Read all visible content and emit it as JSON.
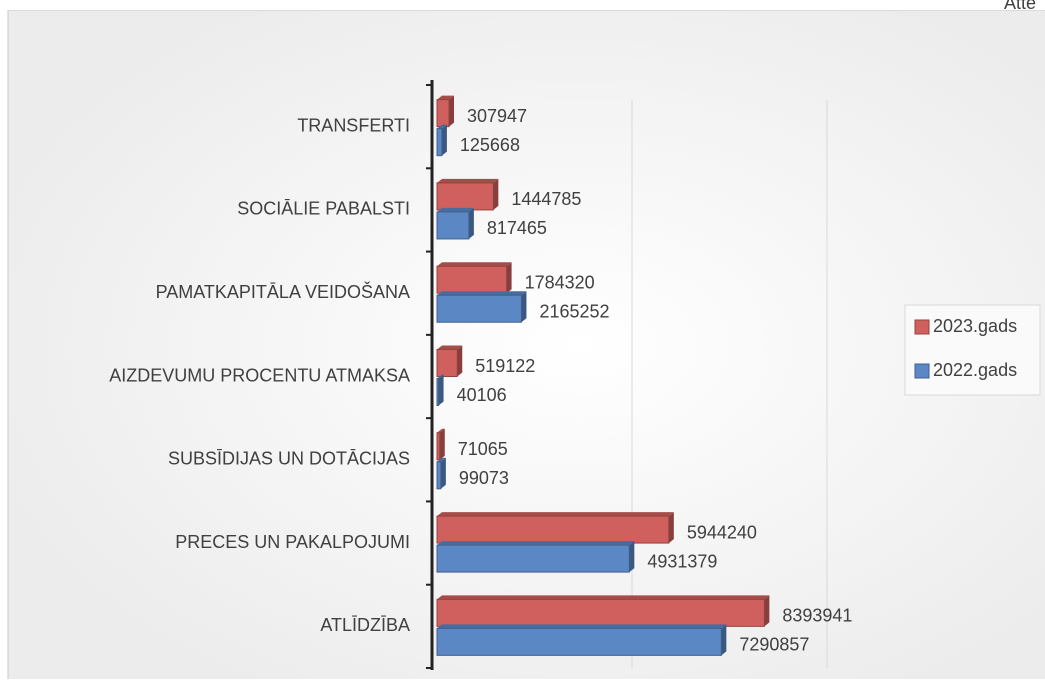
{
  "chart_data": {
    "type": "bar",
    "orientation": "horizontal",
    "corner_text": "Atte",
    "categories": [
      "ATLĪDZĪBA",
      "PRECES UN PAKALPOJUMI",
      "SUBSĪDIJAS UN DOTĀCIJAS",
      "AIZDEVUMU  PROCENTU  ATMAKSA",
      "PAMATKAPITĀLA VEIDOŠANA",
      "SOCIĀLIE PABALSTI",
      "TRANSFERTI"
    ],
    "series": [
      {
        "name": "2023.gads",
        "color": "#d0605d",
        "values": [
          8393941,
          5944240,
          71065,
          519122,
          1784320,
          1444785,
          307947
        ]
      },
      {
        "name": "2022.gads",
        "color": "#5b87c5",
        "values": [
          7290857,
          4931379,
          99073,
          40106,
          2165252,
          817465,
          125668
        ]
      }
    ],
    "xlim": [
      0,
      10000000
    ],
    "xticks": [
      0,
      5000000,
      10000000
    ],
    "grid": true,
    "legend": "right"
  }
}
